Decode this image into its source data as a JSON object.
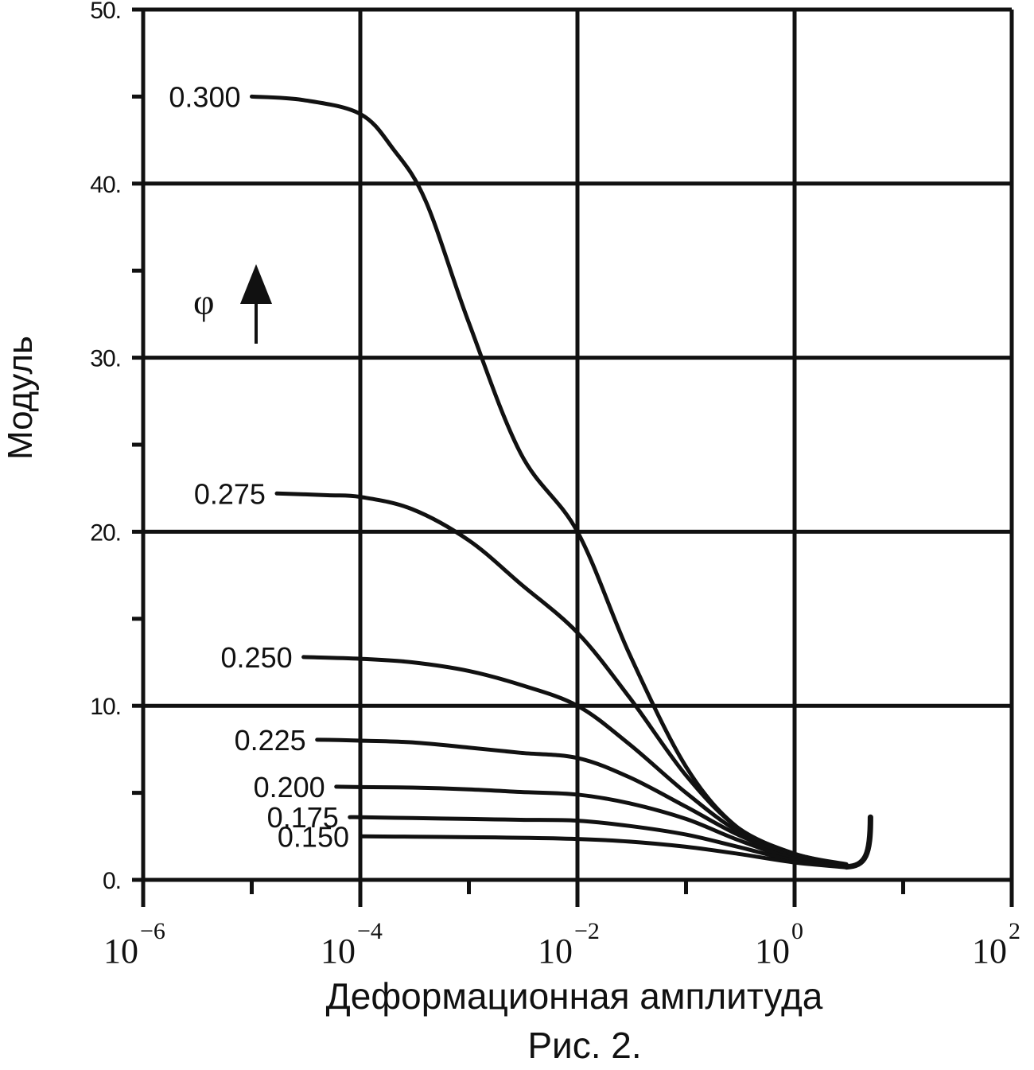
{
  "chart_data": {
    "type": "line",
    "xlabel": "Деформационная амплитуда",
    "ylabel": "Модуль",
    "caption": "Рис. 2.",
    "x_scale": "log",
    "xlim": [
      1e-06,
      100
    ],
    "ylim": [
      0,
      50
    ],
    "grid": true,
    "x_ticks": [
      {
        "base": "10",
        "exp": "−6",
        "value": 1e-06
      },
      {
        "base": "10",
        "exp": "−4",
        "value": 0.0001
      },
      {
        "base": "10",
        "exp": "−2",
        "value": 0.01
      },
      {
        "base": "10",
        "exp": "0",
        "value": 1
      },
      {
        "base": "10",
        "exp": "2",
        "value": 100
      }
    ],
    "y_ticks": [
      {
        "label": "0.",
        "value": 0
      },
      {
        "label": "10.",
        "value": 10
      },
      {
        "label": "20.",
        "value": 20
      },
      {
        "label": "30.",
        "value": 30
      },
      {
        "label": "40.",
        "value": 40
      },
      {
        "label": "50.",
        "value": 50
      }
    ],
    "annotation": {
      "symbol": "φ"
    },
    "series": [
      {
        "name": "0.300",
        "x": [
          1e-05,
          3e-05,
          0.0001,
          0.0002,
          0.0004,
          0.001,
          0.003,
          0.01,
          0.03,
          0.1,
          0.3,
          1,
          3
        ],
        "y": [
          45,
          44.8,
          44,
          42,
          39,
          32,
          24.5,
          20,
          13,
          6.5,
          3,
          1.5,
          0.9
        ]
      },
      {
        "name": "0.275",
        "x": [
          1.7e-05,
          5e-05,
          0.0001,
          0.0003,
          0.001,
          0.003,
          0.01,
          0.03,
          0.1,
          0.3,
          1,
          3
        ],
        "y": [
          22.2,
          22.1,
          22,
          21.3,
          19.5,
          17,
          14.2,
          10.5,
          6,
          3,
          1.5,
          0.85
        ]
      },
      {
        "name": "0.250",
        "x": [
          3e-05,
          0.0001,
          0.0003,
          0.001,
          0.003,
          0.01,
          0.03,
          0.1,
          0.3,
          1,
          3
        ],
        "y": [
          12.8,
          12.7,
          12.5,
          12,
          11.2,
          10,
          7.8,
          5,
          2.8,
          1.4,
          0.8
        ]
      },
      {
        "name": "0.225",
        "x": [
          4e-05,
          0.0001,
          0.0003,
          0.001,
          0.003,
          0.01,
          0.03,
          0.1,
          0.3,
          1,
          3
        ],
        "y": [
          8.05,
          8.0,
          7.9,
          7.6,
          7.3,
          7.0,
          5.9,
          4.2,
          2.6,
          1.3,
          0.8
        ]
      },
      {
        "name": "0.200",
        "x": [
          6e-05,
          0.0001,
          0.0003,
          0.001,
          0.003,
          0.01,
          0.03,
          0.1,
          0.3,
          1,
          3
        ],
        "y": [
          5.35,
          5.33,
          5.3,
          5.2,
          5.05,
          4.9,
          4.4,
          3.5,
          2.3,
          1.2,
          0.78
        ]
      },
      {
        "name": "0.175",
        "x": [
          8e-05,
          0.0001,
          0.0003,
          0.001,
          0.003,
          0.01,
          0.03,
          0.1,
          0.3,
          1,
          3
        ],
        "y": [
          3.6,
          3.6,
          3.55,
          3.5,
          3.45,
          3.4,
          3.1,
          2.6,
          1.9,
          1.1,
          0.75
        ]
      },
      {
        "name": "0.150",
        "x": [
          0.0001,
          0.0003,
          0.001,
          0.003,
          0.01,
          0.03,
          0.1,
          0.3,
          1,
          3
        ],
        "y": [
          2.5,
          2.48,
          2.45,
          2.42,
          2.35,
          2.2,
          1.9,
          1.5,
          1.0,
          0.72
        ]
      }
    ]
  }
}
